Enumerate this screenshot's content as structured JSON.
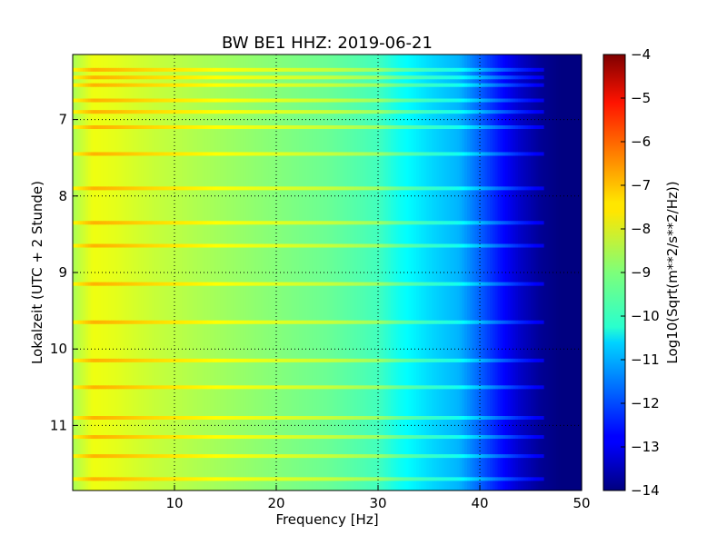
{
  "chart_data": {
    "type": "heatmap",
    "title": "BW BE1 HHZ: 2019-06-21",
    "xlabel": "Frequency [Hz]",
    "ylabel": "Lokalzeit (UTC + 2 Stunde)",
    "xlim": [
      0,
      50
    ],
    "ylim": [
      6.15,
      11.85
    ],
    "y_inverted": true,
    "x_ticks": [
      10,
      20,
      30,
      40,
      50
    ],
    "y_ticks": [
      7,
      8,
      9,
      10,
      11
    ],
    "grid": true,
    "grid_style": "dotted",
    "colormap": "jet",
    "colorbar": {
      "label": "Log10(Sqrt(m**2/s**2/Hz))",
      "range": [
        -14,
        -4
      ],
      "ticks": [
        -4,
        -5,
        -6,
        -7,
        -8,
        -9,
        -10,
        -11,
        -12,
        -13,
        -14
      ]
    },
    "spectrum_profile": {
      "freq_hz": [
        0,
        2,
        4,
        8,
        15,
        25,
        30,
        32,
        35,
        38,
        40,
        42,
        44,
        46,
        48,
        50
      ],
      "log_amplitude": [
        -8.6,
        -7.9,
        -8.0,
        -8.3,
        -8.7,
        -9.2,
        -9.6,
        -10.1,
        -10.6,
        -11.0,
        -11.8,
        -12.6,
        -13.3,
        -13.8,
        -14,
        -14
      ]
    },
    "bright_bands_hours": [
      6.35,
      6.45,
      6.55,
      6.75,
      6.9,
      7.1,
      7.45,
      7.9,
      8.35,
      8.65,
      9.15,
      9.65,
      10.15,
      10.5,
      10.9,
      11.15,
      11.4,
      11.7
    ]
  }
}
